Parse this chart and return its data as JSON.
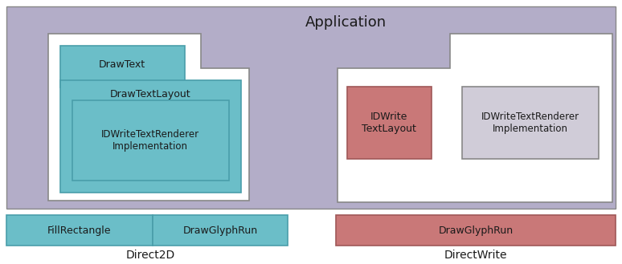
{
  "fig_width": 7.74,
  "fig_height": 3.29,
  "dpi": 100,
  "colors": {
    "app_bg": "#b3adc8",
    "teal_box": "#6bbec8",
    "teal_box_edge": "#4a9eaa",
    "white_box": "#ffffff",
    "white_box_edge": "#888888",
    "salmon_box": "#c97878",
    "salmon_box_edge": "#a05858",
    "gray_box": "#d0ccd8",
    "gray_box_edge": "#888888",
    "background": "#ffffff",
    "text_dark": "#1a1a1a"
  },
  "labels": {
    "application": "Application",
    "draw_text": "DrawText",
    "draw_text_layout": "DrawTextLayout",
    "idwrite_text_renderer": "IDWriteTextRenderer\nImplementation",
    "idwrite_text_layout": "IDWrite\nTextLayout",
    "idwrite_text_renderer2": "IDWriteTextRenderer\nImplementation",
    "fill_rectangle": "FillRectangle",
    "draw_glyph_run_left": "DrawGlyphRun",
    "draw_glyph_run_right": "DrawGlyphRun",
    "direct2d": "Direct2D",
    "directwrite": "DirectWrite"
  }
}
